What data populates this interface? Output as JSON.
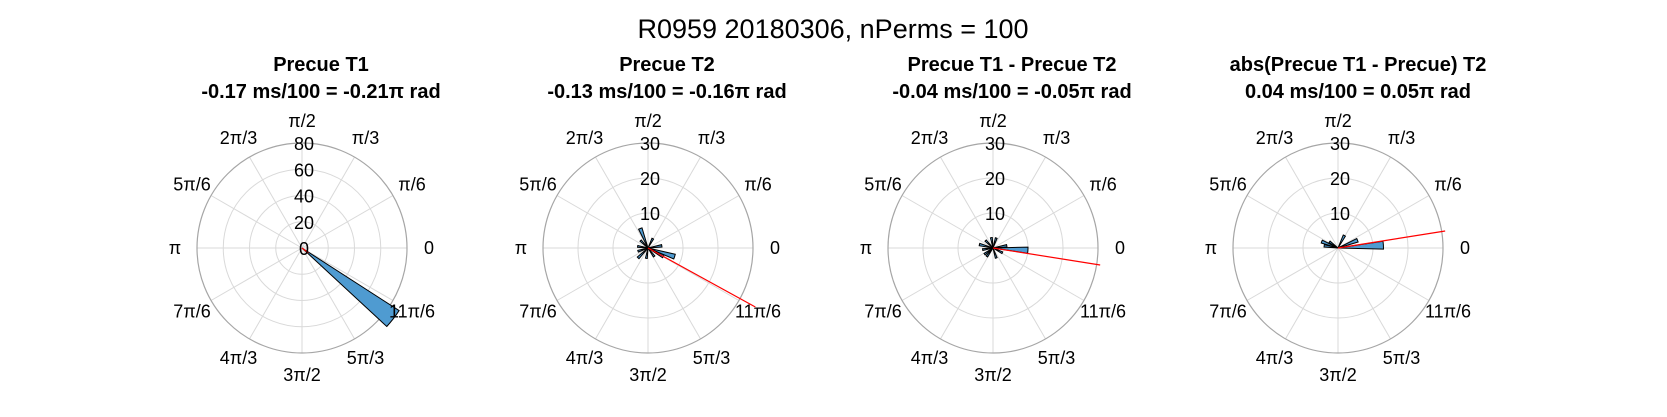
{
  "figure": {
    "title": "R0959 20180306, nPerms = 100"
  },
  "chart_data": [
    {
      "type": "polar-histogram",
      "title": [
        "Precue T1",
        "-0.17 ms/100 = -0.21π rad"
      ],
      "theta_ticks": [
        "0",
        "π/6",
        "π/3",
        "π/2",
        "2π/3",
        "5π/6",
        "π",
        "7π/6",
        "4π/3",
        "3π/2",
        "5π/3",
        "11π/6"
      ],
      "rlim": [
        0,
        80
      ],
      "r_ticks": [
        "0",
        "20",
        "40",
        "60",
        "80"
      ],
      "bins": [
        {
          "angle_center": -0.21,
          "count": 88
        }
      ],
      "mean_angle": -0.21,
      "mean_line_length": 6,
      "grid": true
    },
    {
      "type": "polar-histogram",
      "title": [
        "Precue T2",
        "-0.13 ms/100 = -0.16π rad"
      ],
      "theta_ticks": [
        "0",
        "π/6",
        "π/3",
        "π/2",
        "2π/3",
        "5π/6",
        "π",
        "7π/6",
        "4π/3",
        "3π/2",
        "5π/3",
        "11π/6"
      ],
      "rlim": [
        0,
        30
      ],
      "r_ticks": [
        "10",
        "20",
        "30"
      ],
      "bins": [
        {
          "angle_center": -0.1,
          "count": 8
        },
        {
          "angle_center": -0.16,
          "count": 5
        },
        {
          "angle_center": 0.05,
          "count": 4
        },
        {
          "angle_center": 0.35,
          "count": 3
        },
        {
          "angle_center": 0.62,
          "count": 6
        },
        {
          "angle_center": 0.75,
          "count": 3
        },
        {
          "angle_center": 0.95,
          "count": 3
        },
        {
          "angle_center": 1.1,
          "count": 3
        },
        {
          "angle_center": 1.25,
          "count": 4
        },
        {
          "angle_center": 1.45,
          "count": 3
        },
        {
          "angle_center": 1.7,
          "count": 3
        }
      ],
      "mean_angle": -0.16,
      "mean_line_length": 35,
      "grid": true
    },
    {
      "type": "polar-histogram",
      "title": [
        "Precue T1 - Precue T2",
        "-0.04 ms/100 = -0.05π rad"
      ],
      "theta_ticks": [
        "0",
        "π/6",
        "π/3",
        "π/2",
        "2π/3",
        "5π/6",
        "π",
        "7π/6",
        "4π/3",
        "3π/2",
        "5π/3",
        "11π/6"
      ],
      "rlim": [
        0,
        30
      ],
      "r_ticks": [
        "10",
        "20",
        "30"
      ],
      "bins": [
        {
          "angle_center": -0.02,
          "count": 10
        },
        {
          "angle_center": 0.05,
          "count": 4
        },
        {
          "angle_center": 0.4,
          "count": 3
        },
        {
          "angle_center": 0.55,
          "count": 3
        },
        {
          "angle_center": 0.75,
          "count": 3
        },
        {
          "angle_center": 0.92,
          "count": 4
        },
        {
          "angle_center": 1.05,
          "count": 3
        },
        {
          "angle_center": 1.2,
          "count": 3
        },
        {
          "angle_center": 1.3,
          "count": 3
        },
        {
          "angle_center": 1.6,
          "count": 3
        },
        {
          "angle_center": 1.85,
          "count": 3
        }
      ],
      "mean_angle": -0.05,
      "mean_line_length": 31,
      "grid": true
    },
    {
      "type": "polar-histogram",
      "title": [
        "abs(Precue T1 - Precue) T2",
        "0.04 ms/100 = 0.05π rad"
      ],
      "theta_ticks": [
        "0",
        "π/6",
        "π/3",
        "π/2",
        "2π/3",
        "5π/6",
        "π",
        "7π/6",
        "4π/3",
        "3π/2",
        "5π/3",
        "11π/6"
      ],
      "rlim": [
        0,
        30
      ],
      "r_ticks": [
        "10",
        "20",
        "30"
      ],
      "bins": [
        {
          "angle_center": 0.02,
          "count": 13
        },
        {
          "angle_center": 0.12,
          "count": 6
        },
        {
          "angle_center": 0.35,
          "count": 4
        },
        {
          "angle_center": 0.8,
          "count": 3
        },
        {
          "angle_center": 0.88,
          "count": 5
        },
        {
          "angle_center": 0.95,
          "count": 4
        }
      ],
      "mean_angle": 0.05,
      "mean_line_length": 31,
      "grid": true
    }
  ],
  "colors": {
    "bar_fill": "#4f9bd1",
    "bar_edge": "#000000",
    "mean_line": "#ff0000",
    "grid": "#d9d9d9",
    "outer_circle": "#a6a6a6"
  }
}
